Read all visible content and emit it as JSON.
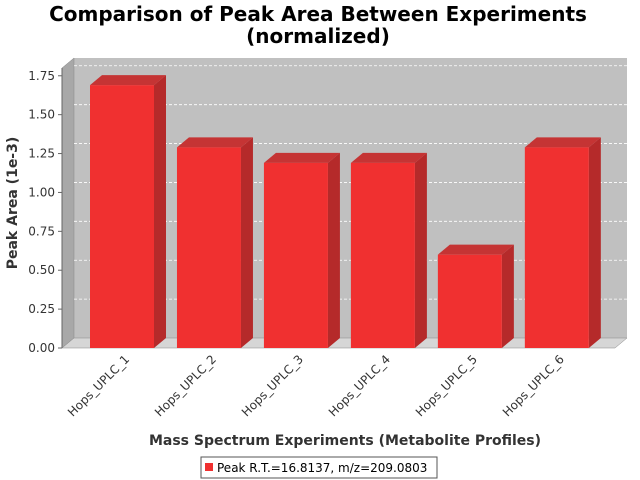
{
  "chart_data": {
    "type": "bar",
    "title": "Comparison of Peak Area Between Experiments",
    "subtitle": "(normalized)",
    "xlabel": "Mass Spectrum Experiments (Metabolite Profiles)",
    "ylabel": "Peak Area (1e-3)",
    "categories": [
      "Hops_UPLC_1",
      "Hops_UPLC_2",
      "Hops_UPLC_3",
      "Hops_UPLC_4",
      "Hops_UPLC_5",
      "Hops_UPLC_6"
    ],
    "series": [
      {
        "name": "Peak R.T.=16.8137, m/z=209.0803",
        "values": [
          1.69,
          1.29,
          1.19,
          1.19,
          0.6,
          1.29
        ],
        "color": "#f03030"
      }
    ],
    "ylim": [
      0,
      1.8
    ],
    "yticks": [
      "0.00",
      "0.25",
      "0.50",
      "0.75",
      "1.00",
      "1.25",
      "1.50",
      "1.75"
    ],
    "grid": true,
    "legend_position": "bottom",
    "plot_background": "#c0c0c0",
    "three_d": true
  }
}
